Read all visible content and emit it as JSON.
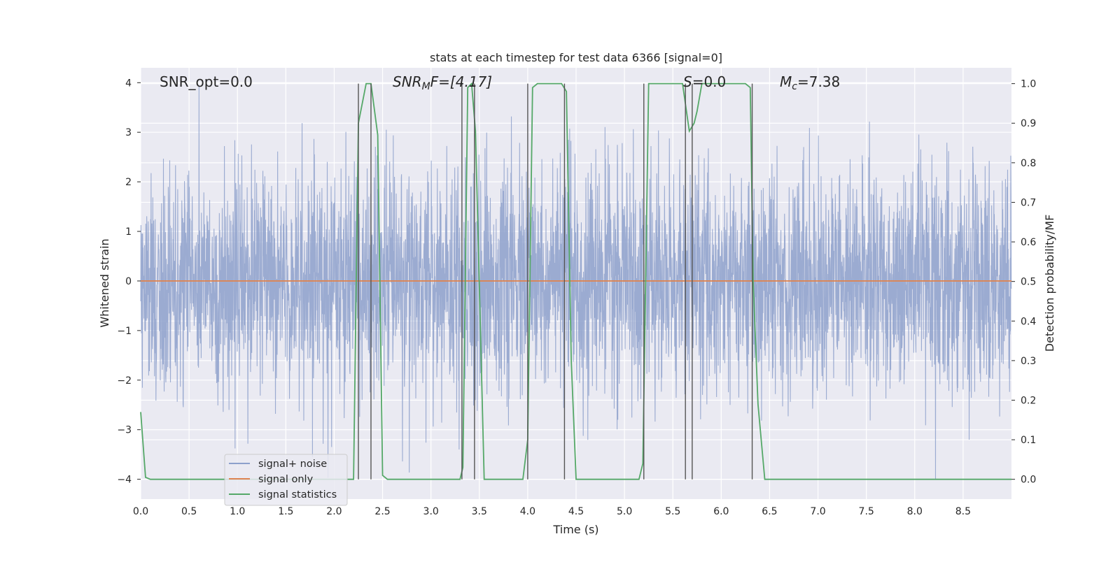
{
  "chart_data": {
    "type": "line",
    "title": "stats at each timestep for test data 6366 [signal=0]",
    "xlabel": "Time (s)",
    "ylabel_left": "Whitened strain",
    "ylabel_right": "Detection probability/MF",
    "xlim": [
      0,
      9
    ],
    "ylim_left": [
      -4.4,
      4.3
    ],
    "ylim_right": [
      -0.05,
      1.04
    ],
    "x_ticks": [
      0.0,
      0.5,
      1.0,
      1.5,
      2.0,
      2.5,
      3.0,
      3.5,
      4.0,
      4.5,
      5.0,
      5.5,
      6.0,
      6.5,
      7.0,
      7.5,
      8.0,
      8.5
    ],
    "x_tick_labels": [
      "0.0",
      "0.5",
      "1.0",
      "1.5",
      "2.0",
      "2.5",
      "3.0",
      "3.5",
      "4.0",
      "4.5",
      "5.0",
      "5.5",
      "6.0",
      "6.5",
      "7.0",
      "7.5",
      "8.0",
      "8.5"
    ],
    "y_left_ticks": [
      -4,
      -3,
      -2,
      -1,
      0,
      1,
      2,
      3,
      4
    ],
    "y_left_tick_labels": [
      "−4",
      "−3",
      "−2",
      "−1",
      "0",
      "1",
      "2",
      "3",
      "4"
    ],
    "y_right_ticks": [
      0.0,
      0.1,
      0.2,
      0.3,
      0.4,
      0.5,
      0.6,
      0.7,
      0.8,
      0.9,
      1.0
    ],
    "y_right_tick_labels": [
      "0.0",
      "0.1",
      "0.2",
      "0.3",
      "0.4",
      "0.5",
      "0.6",
      "0.7",
      "0.8",
      "0.9",
      "1.0"
    ],
    "grid": true,
    "legend_position": "lower-left",
    "annotations": {
      "snr_opt": "SNR_opt=0.0",
      "snr_mf_sym": "SNR",
      "snr_mf_sub": "M",
      "snr_mf_tail": "F=[4.17]",
      "s_sym": "S",
      "s_tail": "=0.0",
      "mc_sym": "M",
      "mc_sub": "c",
      "mc_tail": "=7.38"
    },
    "series": [
      {
        "name": "signal+ noise",
        "axis": "left",
        "color": "#8da0cb",
        "style": "noise",
        "x_range": [
          0,
          9
        ],
        "envelope_sigma": 1.1,
        "envelope_peak": 4.0
      },
      {
        "name": "signal only",
        "axis": "left",
        "color": "#dd8452",
        "x": [
          0,
          9
        ],
        "y": [
          0,
          0
        ]
      },
      {
        "name": "signal statistics",
        "axis": "right",
        "color": "#55a868",
        "x": [
          0.0,
          0.05,
          0.1,
          2.2,
          2.25,
          2.33,
          2.38,
          2.45,
          2.5,
          2.55,
          3.3,
          3.33,
          3.38,
          3.42,
          3.46,
          3.55,
          3.6,
          3.95,
          4.0,
          4.05,
          4.1,
          4.35,
          4.4,
          4.45,
          4.5,
          5.15,
          5.19,
          5.25,
          5.3,
          5.6,
          5.67,
          5.72,
          5.75,
          5.8,
          5.9,
          6.25,
          6.3,
          6.33,
          6.38,
          6.45,
          6.5,
          9.0
        ],
        "y": [
          0.17,
          0.005,
          0.0,
          0.0,
          0.9,
          1.0,
          1.0,
          0.87,
          0.01,
          0.0,
          0.0,
          0.03,
          0.99,
          1.0,
          0.88,
          0.0,
          0.0,
          0.0,
          0.1,
          0.99,
          1.0,
          1.0,
          0.98,
          0.3,
          0.0,
          0.0,
          0.04,
          1.0,
          1.0,
          1.0,
          0.88,
          0.9,
          0.93,
          1.0,
          1.0,
          1.0,
          0.99,
          0.5,
          0.19,
          0.0,
          0.0,
          0.0
        ]
      }
    ],
    "vertical_lines": {
      "color": "#555555",
      "x": [
        2.25,
        2.38,
        3.32,
        3.45,
        4.0,
        4.38,
        5.2,
        5.63,
        5.7,
        6.32
      ],
      "y_top": 1.0,
      "y_bottom": 0.0
    }
  }
}
